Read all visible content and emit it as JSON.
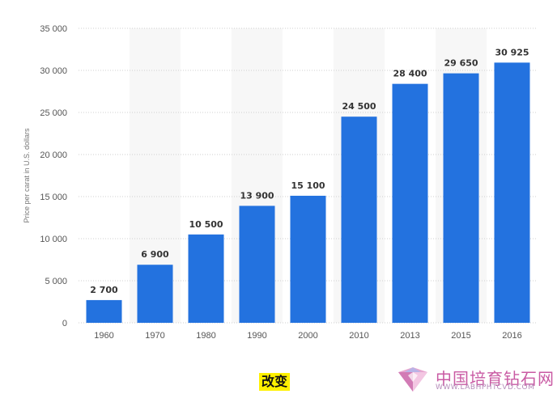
{
  "chart_data": {
    "type": "bar",
    "categories": [
      "1960",
      "1970",
      "1980",
      "1990",
      "2000",
      "2010",
      "2013",
      "2015",
      "2016"
    ],
    "values": [
      2700,
      6900,
      10500,
      13900,
      15100,
      24500,
      28400,
      29650,
      30925
    ],
    "value_labels": [
      "2 700",
      "6 900",
      "10 500",
      "13 900",
      "15 100",
      "24 500",
      "28 400",
      "29 650",
      "30 925"
    ],
    "yticks": [
      0,
      5000,
      10000,
      15000,
      20000,
      25000,
      30000,
      35000
    ],
    "ytick_labels": [
      "0",
      "5 000",
      "10 000",
      "15 000",
      "20 000",
      "25 000",
      "30 000",
      "35 000"
    ],
    "ylabel": "Price per carat in U.S. dollars",
    "xlabel": "",
    "ylim": [
      0,
      35000
    ],
    "grid": true,
    "bar_color": "#2372df"
  },
  "annotation": {
    "tag_text": "改变",
    "tag_color": "#fff100"
  },
  "watermark": {
    "name": "中国培育钻石网",
    "url": "WWW.LABHPHTCVD.COM"
  }
}
